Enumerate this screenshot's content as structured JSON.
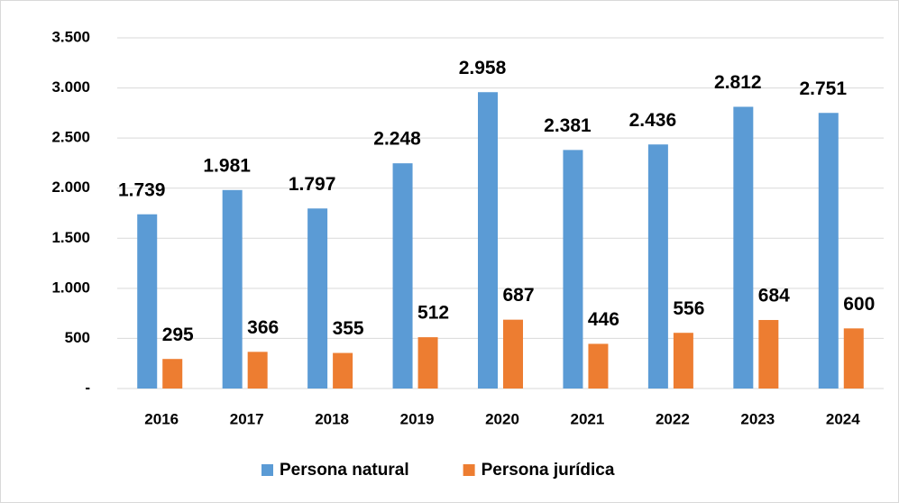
{
  "chart_data": {
    "type": "bar",
    "categories": [
      "2016",
      "2017",
      "2018",
      "2019",
      "2020",
      "2021",
      "2022",
      "2023",
      "2024"
    ],
    "series": [
      {
        "name": "Persona natural",
        "color": "#5b9bd5",
        "values": [
          1739,
          1981,
          1797,
          2248,
          2958,
          2381,
          2436,
          2812,
          2751
        ],
        "value_labels": [
          "1.739",
          "1.981",
          "1.797",
          "2.248",
          "2.958",
          "2.381",
          "2.436",
          "2.812",
          "2.751"
        ]
      },
      {
        "name": "Persona jurídica",
        "color": "#ed7d31",
        "values": [
          295,
          366,
          355,
          512,
          687,
          446,
          556,
          684,
          600
        ],
        "value_labels": [
          "295",
          "366",
          "355",
          "512",
          "687",
          "446",
          "556",
          "684",
          "600"
        ]
      }
    ],
    "ylim": [
      0,
      3500
    ],
    "yticks": [
      {
        "value": 0,
        "label": "-"
      },
      500,
      {
        "value": 1000,
        "label": "1.000"
      },
      {
        "value": 1500,
        "label": "1.500"
      },
      {
        "value": 2000,
        "label": "2.000"
      },
      {
        "value": 2500,
        "label": "2.500"
      },
      {
        "value": 3000,
        "label": "3.000"
      },
      {
        "value": 3500,
        "label": "3.500"
      }
    ],
    "grid": true,
    "legend": "bottom"
  }
}
